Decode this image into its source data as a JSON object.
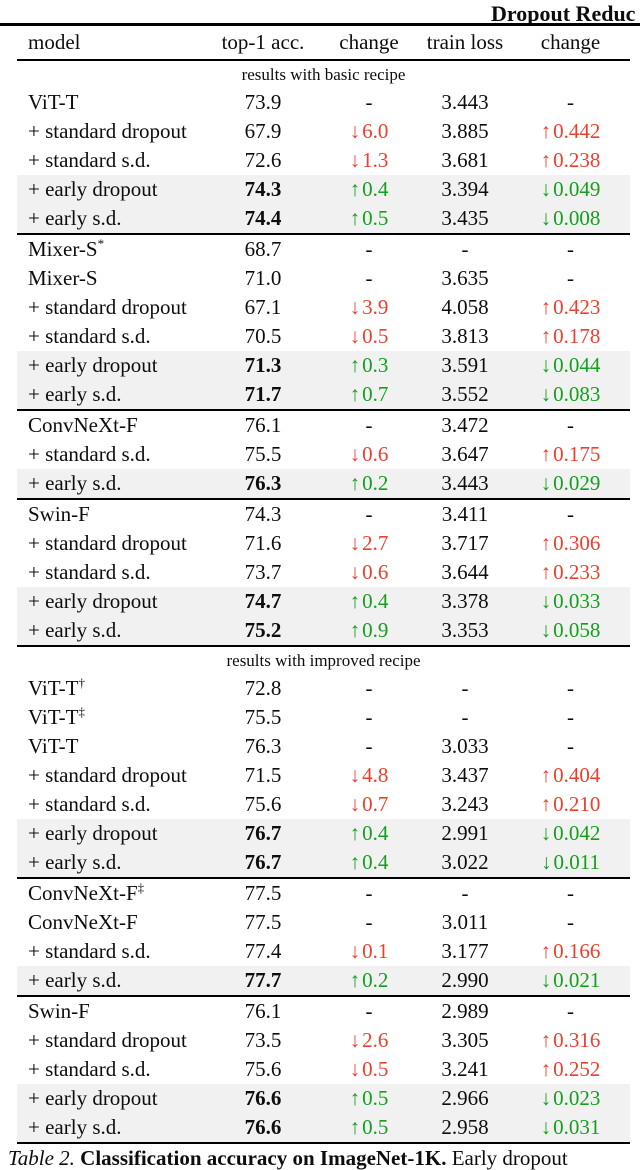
{
  "page_header": {
    "running_title": "Dropout Reduc"
  },
  "colors": {
    "positive": "#14a01e",
    "negative": "#ee3e2d",
    "highlight_bg": "#f1f1f1"
  },
  "table": {
    "columns": [
      "model",
      "top-1 acc.",
      "change",
      "train loss",
      "change"
    ],
    "sections": [
      {
        "label": "results with basic recipe",
        "groups": [
          {
            "rows": [
              {
                "model": "ViT-T",
                "sup": "",
                "acc": "73.9",
                "acc_bold": false,
                "acc_change": null,
                "loss": "3.443",
                "loss_change": null,
                "highlight": false
              },
              {
                "model": "+ standard dropout",
                "sup": "",
                "acc": "67.9",
                "acc_bold": false,
                "acc_change": {
                  "dir": "down",
                  "val": "6.0"
                },
                "loss": "3.885",
                "loss_change": {
                  "dir": "up",
                  "val": "0.442"
                },
                "highlight": false
              },
              {
                "model": "+ standard s.d.",
                "sup": "",
                "acc": "72.6",
                "acc_bold": false,
                "acc_change": {
                  "dir": "down",
                  "val": "1.3"
                },
                "loss": "3.681",
                "loss_change": {
                  "dir": "up",
                  "val": "0.238"
                },
                "highlight": false
              },
              {
                "model": "+ early dropout",
                "sup": "",
                "acc": "74.3",
                "acc_bold": true,
                "acc_change": {
                  "dir": "up",
                  "val": "0.4"
                },
                "loss": "3.394",
                "loss_change": {
                  "dir": "down",
                  "val": "0.049"
                },
                "highlight": true
              },
              {
                "model": "+ early s.d.",
                "sup": "",
                "acc": "74.4",
                "acc_bold": true,
                "acc_change": {
                  "dir": "up",
                  "val": "0.5"
                },
                "loss": "3.435",
                "loss_change": {
                  "dir": "down",
                  "val": "0.008"
                },
                "highlight": true
              }
            ]
          },
          {
            "rows": [
              {
                "model": "Mixer-S",
                "sup": "*",
                "acc": "68.7",
                "acc_bold": false,
                "acc_change": null,
                "loss": "-",
                "loss_change": null,
                "highlight": false
              },
              {
                "model": "Mixer-S",
                "sup": "",
                "acc": "71.0",
                "acc_bold": false,
                "acc_change": null,
                "loss": "3.635",
                "loss_change": null,
                "highlight": false
              },
              {
                "model": "+ standard dropout",
                "sup": "",
                "acc": "67.1",
                "acc_bold": false,
                "acc_change": {
                  "dir": "down",
                  "val": "3.9"
                },
                "loss": "4.058",
                "loss_change": {
                  "dir": "up",
                  "val": "0.423"
                },
                "highlight": false
              },
              {
                "model": "+ standard s.d.",
                "sup": "",
                "acc": "70.5",
                "acc_bold": false,
                "acc_change": {
                  "dir": "down",
                  "val": "0.5"
                },
                "loss": "3.813",
                "loss_change": {
                  "dir": "up",
                  "val": "0.178"
                },
                "highlight": false
              },
              {
                "model": "+ early dropout",
                "sup": "",
                "acc": "71.3",
                "acc_bold": true,
                "acc_change": {
                  "dir": "up",
                  "val": "0.3"
                },
                "loss": "3.591",
                "loss_change": {
                  "dir": "down",
                  "val": "0.044"
                },
                "highlight": true
              },
              {
                "model": "+ early s.d.",
                "sup": "",
                "acc": "71.7",
                "acc_bold": true,
                "acc_change": {
                  "dir": "up",
                  "val": "0.7"
                },
                "loss": "3.552",
                "loss_change": {
                  "dir": "down",
                  "val": "0.083"
                },
                "highlight": true
              }
            ]
          },
          {
            "rows": [
              {
                "model": "ConvNeXt-F",
                "sup": "",
                "acc": "76.1",
                "acc_bold": false,
                "acc_change": null,
                "loss": "3.472",
                "loss_change": null,
                "highlight": false
              },
              {
                "model": "+ standard s.d.",
                "sup": "",
                "acc": "75.5",
                "acc_bold": false,
                "acc_change": {
                  "dir": "down",
                  "val": "0.6"
                },
                "loss": "3.647",
                "loss_change": {
                  "dir": "up",
                  "val": "0.175"
                },
                "highlight": false
              },
              {
                "model": "+ early s.d.",
                "sup": "",
                "acc": "76.3",
                "acc_bold": true,
                "acc_change": {
                  "dir": "up",
                  "val": "0.2"
                },
                "loss": "3.443",
                "loss_change": {
                  "dir": "down",
                  "val": "0.029"
                },
                "highlight": true
              }
            ]
          },
          {
            "rows": [
              {
                "model": "Swin-F",
                "sup": "",
                "acc": "74.3",
                "acc_bold": false,
                "acc_change": null,
                "loss": "3.411",
                "loss_change": null,
                "highlight": false
              },
              {
                "model": "+ standard dropout",
                "sup": "",
                "acc": "71.6",
                "acc_bold": false,
                "acc_change": {
                  "dir": "down",
                  "val": "2.7"
                },
                "loss": "3.717",
                "loss_change": {
                  "dir": "up",
                  "val": "0.306"
                },
                "highlight": false
              },
              {
                "model": "+ standard s.d.",
                "sup": "",
                "acc": "73.7",
                "acc_bold": false,
                "acc_change": {
                  "dir": "down",
                  "val": "0.6"
                },
                "loss": "3.644",
                "loss_change": {
                  "dir": "up",
                  "val": "0.233"
                },
                "highlight": false
              },
              {
                "model": "+ early dropout",
                "sup": "",
                "acc": "74.7",
                "acc_bold": true,
                "acc_change": {
                  "dir": "up",
                  "val": "0.4"
                },
                "loss": "3.378",
                "loss_change": {
                  "dir": "down",
                  "val": "0.033"
                },
                "highlight": true
              },
              {
                "model": "+ early s.d.",
                "sup": "",
                "acc": "75.2",
                "acc_bold": true,
                "acc_change": {
                  "dir": "up",
                  "val": "0.9"
                },
                "loss": "3.353",
                "loss_change": {
                  "dir": "down",
                  "val": "0.058"
                },
                "highlight": true
              }
            ]
          }
        ]
      },
      {
        "label": "results with improved recipe",
        "groups": [
          {
            "rows": [
              {
                "model": "ViT-T",
                "sup": "†",
                "acc": "72.8",
                "acc_bold": false,
                "acc_change": null,
                "loss": "-",
                "loss_change": null,
                "highlight": false
              },
              {
                "model": "ViT-T",
                "sup": "‡",
                "acc": "75.5",
                "acc_bold": false,
                "acc_change": null,
                "loss": "-",
                "loss_change": null,
                "highlight": false
              },
              {
                "model": "ViT-T",
                "sup": "",
                "acc": "76.3",
                "acc_bold": false,
                "acc_change": null,
                "loss": "3.033",
                "loss_change": null,
                "highlight": false
              },
              {
                "model": "+ standard dropout",
                "sup": "",
                "acc": "71.5",
                "acc_bold": false,
                "acc_change": {
                  "dir": "down",
                  "val": "4.8"
                },
                "loss": "3.437",
                "loss_change": {
                  "dir": "up",
                  "val": "0.404"
                },
                "highlight": false
              },
              {
                "model": "+ standard s.d.",
                "sup": "",
                "acc": "75.6",
                "acc_bold": false,
                "acc_change": {
                  "dir": "down",
                  "val": "0.7"
                },
                "loss": "3.243",
                "loss_change": {
                  "dir": "up",
                  "val": "0.210"
                },
                "highlight": false
              },
              {
                "model": "+ early dropout",
                "sup": "",
                "acc": "76.7",
                "acc_bold": true,
                "acc_change": {
                  "dir": "up",
                  "val": "0.4"
                },
                "loss": "2.991",
                "loss_change": {
                  "dir": "down",
                  "val": "0.042"
                },
                "highlight": true
              },
              {
                "model": "+ early s.d.",
                "sup": "",
                "acc": "76.7",
                "acc_bold": true,
                "acc_change": {
                  "dir": "up",
                  "val": "0.4"
                },
                "loss": "3.022",
                "loss_change": {
                  "dir": "down",
                  "val": "0.011"
                },
                "highlight": true
              }
            ]
          },
          {
            "rows": [
              {
                "model": "ConvNeXt-F",
                "sup": "‡",
                "acc": "77.5",
                "acc_bold": false,
                "acc_change": null,
                "loss": "-",
                "loss_change": null,
                "highlight": false
              },
              {
                "model": "ConvNeXt-F",
                "sup": "",
                "acc": "77.5",
                "acc_bold": false,
                "acc_change": null,
                "loss": "3.011",
                "loss_change": null,
                "highlight": false
              },
              {
                "model": "+ standard s.d.",
                "sup": "",
                "acc": "77.4",
                "acc_bold": false,
                "acc_change": {
                  "dir": "down",
                  "val": "0.1"
                },
                "loss": "3.177",
                "loss_change": {
                  "dir": "up",
                  "val": "0.166"
                },
                "highlight": false
              },
              {
                "model": "+ early s.d.",
                "sup": "",
                "acc": "77.7",
                "acc_bold": true,
                "acc_change": {
                  "dir": "up",
                  "val": "0.2"
                },
                "loss": "2.990",
                "loss_change": {
                  "dir": "down",
                  "val": "0.021"
                },
                "highlight": true
              }
            ]
          },
          {
            "rows": [
              {
                "model": "Swin-F",
                "sup": "",
                "acc": "76.1",
                "acc_bold": false,
                "acc_change": null,
                "loss": "2.989",
                "loss_change": null,
                "highlight": false
              },
              {
                "model": "+ standard dropout",
                "sup": "",
                "acc": "73.5",
                "acc_bold": false,
                "acc_change": {
                  "dir": "down",
                  "val": "2.6"
                },
                "loss": "3.305",
                "loss_change": {
                  "dir": "up",
                  "val": "0.316"
                },
                "highlight": false
              },
              {
                "model": "+ standard s.d.",
                "sup": "",
                "acc": "75.6",
                "acc_bold": false,
                "acc_change": {
                  "dir": "down",
                  "val": "0.5"
                },
                "loss": "3.241",
                "loss_change": {
                  "dir": "up",
                  "val": "0.252"
                },
                "highlight": false
              },
              {
                "model": "+ early dropout",
                "sup": "",
                "acc": "76.6",
                "acc_bold": true,
                "acc_change": {
                  "dir": "up",
                  "val": "0.5"
                },
                "loss": "2.966",
                "loss_change": {
                  "dir": "down",
                  "val": "0.023"
                },
                "highlight": true
              },
              {
                "model": "+ early s.d.",
                "sup": "",
                "acc": "76.6",
                "acc_bold": true,
                "acc_change": {
                  "dir": "up",
                  "val": "0.5"
                },
                "loss": "2.958",
                "loss_change": {
                  "dir": "down",
                  "val": "0.031"
                },
                "highlight": true
              }
            ]
          }
        ]
      }
    ]
  },
  "caption": {
    "tag": "Table 2.",
    "title": "Classification accuracy on ImageNet-1K.",
    "text": "Early dropout"
  },
  "glyphs": {
    "up_arrow": "↑",
    "down_arrow": "↓",
    "dash": "-"
  }
}
